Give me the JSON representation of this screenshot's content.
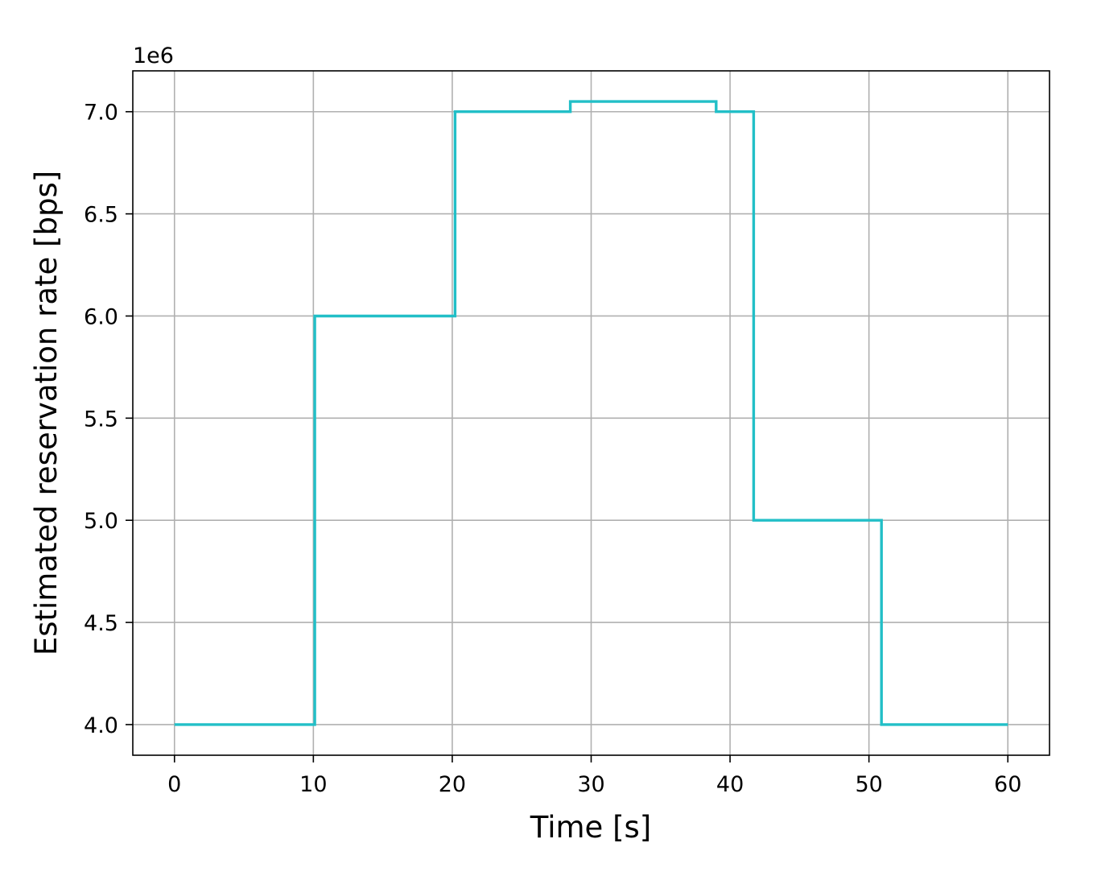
{
  "chart_data": {
    "type": "line",
    "drawstyle": "step",
    "xlabel": "Time [s]",
    "ylabel": "Estimated reservation rate [bps]",
    "y_offset_label": "1e6",
    "xlim": [
      -3,
      63
    ],
    "ylim": [
      3.85,
      7.2
    ],
    "x_ticks": [
      0,
      10,
      20,
      30,
      40,
      50,
      60
    ],
    "x_tick_labels": [
      "0",
      "10",
      "20",
      "30",
      "40",
      "50",
      "60"
    ],
    "y_ticks": [
      4.0,
      4.5,
      5.0,
      5.5,
      6.0,
      6.5,
      7.0
    ],
    "y_tick_labels": [
      "4.0",
      "4.5",
      "5.0",
      "5.5",
      "6.0",
      "6.5",
      "7.0"
    ],
    "grid": true,
    "legend": "none",
    "series": [
      {
        "color": "#22bfc7",
        "x": [
          0,
          10.1,
          10.1,
          20.2,
          20.2,
          28.5,
          28.5,
          39.0,
          39.0,
          41.7,
          41.7,
          50.9,
          50.9,
          60
        ],
        "y": [
          4.0,
          4.0,
          6.0,
          6.0,
          7.0,
          7.0,
          7.05,
          7.05,
          7.0,
          7.0,
          5.0,
          5.0,
          4.0,
          4.0
        ]
      }
    ]
  }
}
